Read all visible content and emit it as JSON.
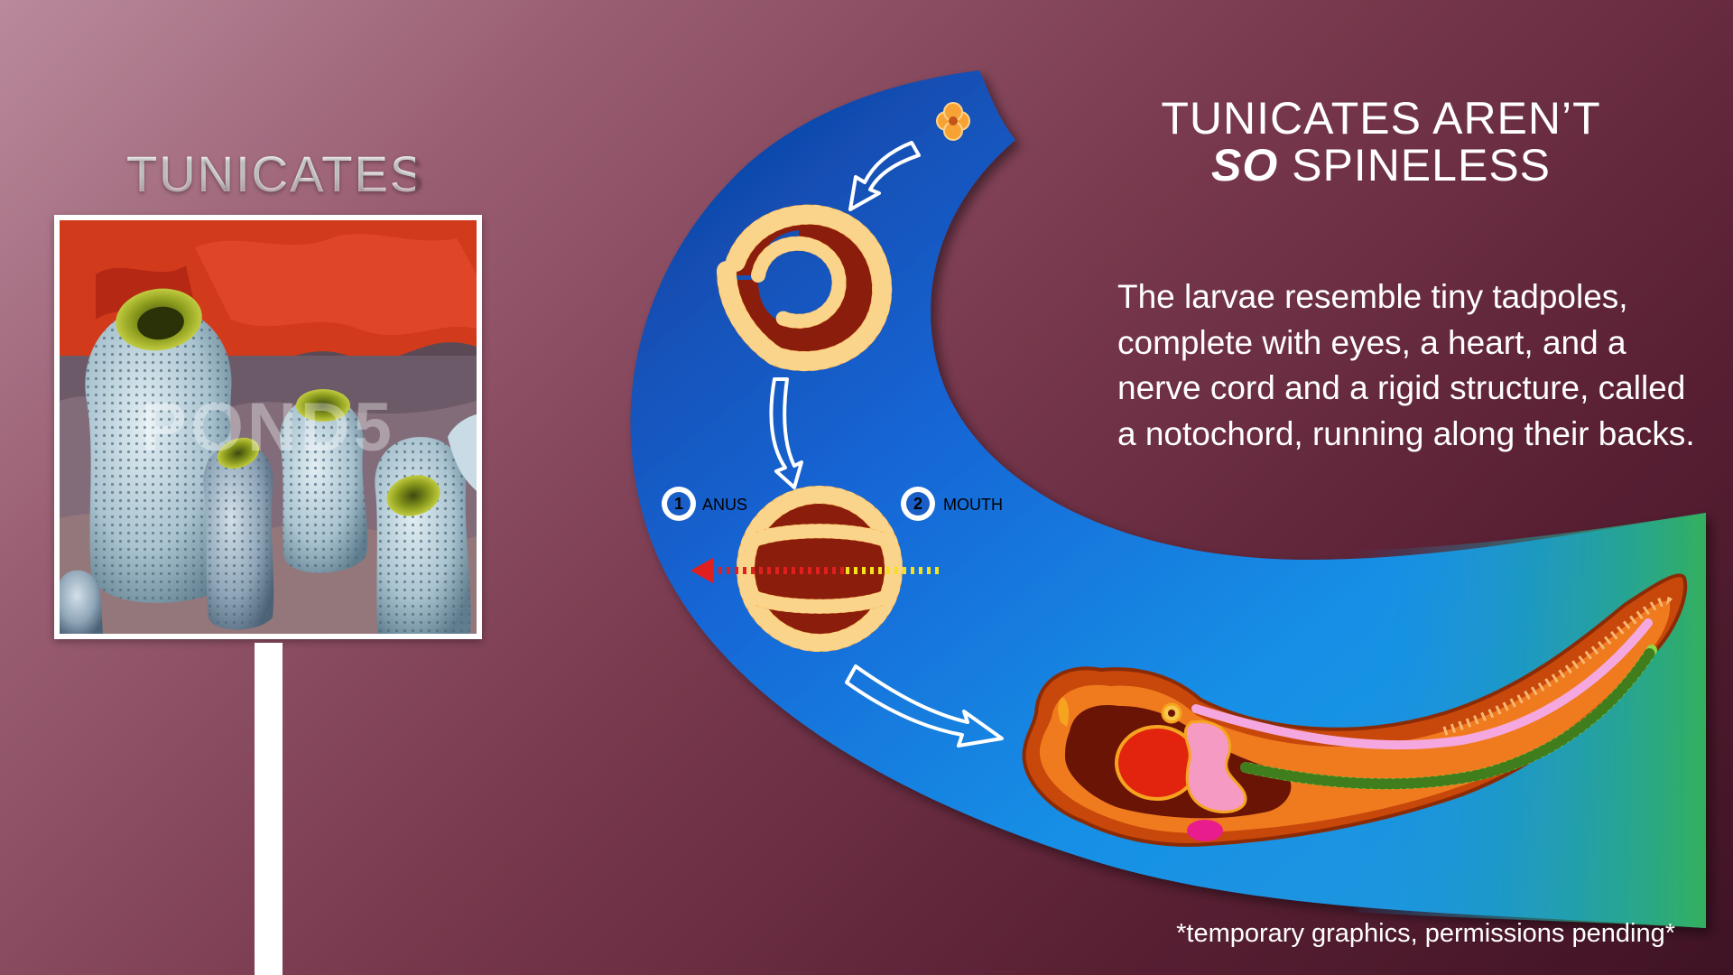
{
  "left": {
    "title": "TUNICATES",
    "photo_watermark": "POND5"
  },
  "right": {
    "title_line1": "TUNICATES AREN’T",
    "title_so": "SO",
    "title_line2_rest": " SPINELESS",
    "body": "The larvae resemble tiny tadpoles, complete with eyes, a heart, and a nerve cord and a rigid structure, called a notochord, running along their backs."
  },
  "diagram": {
    "anus_number": "1",
    "anus_label": "ANUS",
    "mouth_number": "2",
    "mouth_label": "MOUTH"
  },
  "footnote": "*temporary graphics, permissions pending*",
  "colors": {
    "blue_band": "#1a5fc8",
    "band_end_green": "#2eaa6a",
    "cell_orange": "#f7a235",
    "cell_dark": "#8a1d0c",
    "larva_orange": "#f07a1e",
    "notochord_green": "#8ed64a",
    "nerve_pink": "#f5a8e0"
  }
}
